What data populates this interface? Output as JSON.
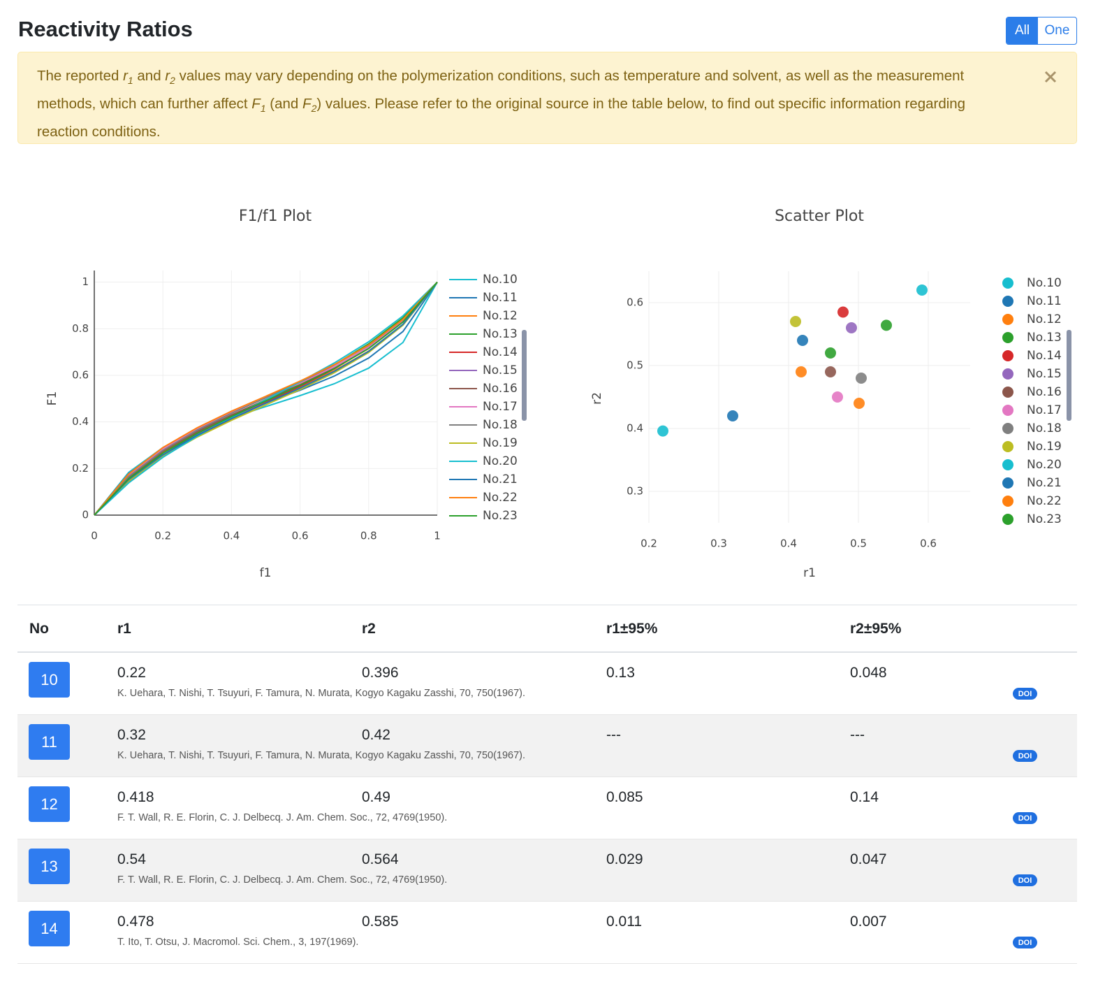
{
  "header": {
    "title": "Reactivity Ratios",
    "toggle": [
      "All",
      "One"
    ]
  },
  "alert": {
    "parts": [
      "The reported ",
      "r",
      "1",
      " and ",
      "r",
      "2",
      " values may vary depending on the polymerization conditions, such as temperature and solvent, as well as the measurement methods, which can further affect ",
      "F",
      "1",
      " (and ",
      "F",
      "2",
      ") values. Please refer to the original source in the table below, to find out specific information regarding reaction conditions."
    ]
  },
  "chart_data": [
    {
      "type": "line",
      "title": "F1/f1 Plot",
      "xlabel": "f1",
      "ylabel": "F1",
      "x": [
        0,
        0.1,
        0.2,
        0.3,
        0.4,
        0.5,
        0.6,
        0.7,
        0.8,
        0.9,
        1
      ],
      "xlim": [
        0,
        1
      ],
      "ylim": [
        0,
        1.05
      ],
      "xticks": [
        0,
        0.2,
        0.4,
        0.6,
        0.8,
        1
      ],
      "yticks": [
        0,
        0.2,
        0.4,
        0.6,
        0.8,
        1
      ],
      "grid": true,
      "legend": "right",
      "series": [
        {
          "name": "No.10",
          "color": "#17becf",
          "values": [
            0,
            0.183,
            0.29,
            0.363,
            0.418,
            0.466,
            0.513,
            0.564,
            0.631,
            0.741,
            1
          ]
        },
        {
          "name": "No.11",
          "color": "#1f77b4",
          "values": [
            0,
            0.178,
            0.287,
            0.365,
            0.427,
            0.482,
            0.536,
            0.597,
            0.674,
            0.788,
            1
          ]
        },
        {
          "name": "No.12",
          "color": "#ff7f0e",
          "values": [
            0,
            0.162,
            0.272,
            0.355,
            0.424,
            0.488,
            0.551,
            0.62,
            0.704,
            0.819,
            1
          ]
        },
        {
          "name": "No.13",
          "color": "#2ca02c",
          "values": [
            0,
            0.149,
            0.258,
            0.347,
            0.424,
            0.496,
            0.568,
            0.645,
            0.735,
            0.847,
            1
          ]
        },
        {
          "name": "No.14",
          "color": "#d62728",
          "values": [
            0,
            0.144,
            0.251,
            0.338,
            0.413,
            0.483,
            0.553,
            0.628,
            0.718,
            0.833,
            1
          ]
        },
        {
          "name": "No.15",
          "color": "#9467bd",
          "values": [
            0,
            0.149,
            0.257,
            0.344,
            0.419,
            0.489,
            0.558,
            0.634,
            0.722,
            0.836,
            1
          ]
        },
        {
          "name": "No.16",
          "color": "#8c564b",
          "values": [
            0,
            0.163,
            0.274,
            0.358,
            0.43,
            0.495,
            0.56,
            0.632,
            0.717,
            0.83,
            1
          ]
        },
        {
          "name": "No.17",
          "color": "#e377c2",
          "values": [
            0,
            0.172,
            0.285,
            0.37,
            0.44,
            0.503,
            0.567,
            0.637,
            0.721,
            0.833,
            1
          ]
        },
        {
          "name": "No.18",
          "color": "#7f7f7f",
          "values": [
            0,
            0.166,
            0.278,
            0.365,
            0.437,
            0.504,
            0.571,
            0.644,
            0.729,
            0.84,
            1
          ]
        },
        {
          "name": "No.19",
          "color": "#bcbd22",
          "values": [
            0,
            0.146,
            0.252,
            0.335,
            0.407,
            0.473,
            0.539,
            0.611,
            0.698,
            0.815,
            1
          ]
        },
        {
          "name": "No.20",
          "color": "#17becf",
          "values": [
            0,
            0.138,
            0.248,
            0.339,
            0.419,
            0.495,
            0.572,
            0.653,
            0.744,
            0.855,
            1
          ]
        },
        {
          "name": "No.21",
          "color": "#1f77b4",
          "values": [
            0,
            0.152,
            0.259,
            0.343,
            0.414,
            0.48,
            0.545,
            0.617,
            0.703,
            0.819,
            1
          ]
        },
        {
          "name": "No.22",
          "color": "#ff7f0e",
          "values": [
            0,
            0.176,
            0.29,
            0.375,
            0.446,
            0.51,
            0.575,
            0.646,
            0.73,
            0.84,
            1
          ]
        },
        {
          "name": "No.23",
          "color": "#2ca02c",
          "values": [
            0,
            0.156,
            0.266,
            0.351,
            0.423,
            0.49,
            0.557,
            0.629,
            0.715,
            0.829,
            1
          ]
        }
      ]
    },
    {
      "type": "scatter",
      "title": "Scatter Plot",
      "xlabel": "r1",
      "ylabel": "r2",
      "xlim": [
        0.2,
        0.66
      ],
      "ylim": [
        0.25,
        0.65
      ],
      "xticks": [
        0.2,
        0.3,
        0.4,
        0.5,
        0.6
      ],
      "yticks": [
        0.3,
        0.4,
        0.5,
        0.6
      ],
      "grid": true,
      "legend": "right",
      "series": [
        {
          "name": "No.10",
          "color": "#17becf",
          "x": [
            0.22
          ],
          "y": [
            0.396
          ]
        },
        {
          "name": "No.11",
          "color": "#1f77b4",
          "x": [
            0.32
          ],
          "y": [
            0.42
          ]
        },
        {
          "name": "No.12",
          "color": "#ff7f0e",
          "x": [
            0.418
          ],
          "y": [
            0.49
          ]
        },
        {
          "name": "No.13",
          "color": "#2ca02c",
          "x": [
            0.54
          ],
          "y": [
            0.564
          ]
        },
        {
          "name": "No.14",
          "color": "#d62728",
          "x": [
            0.478
          ],
          "y": [
            0.585
          ]
        },
        {
          "name": "No.15",
          "color": "#9467bd",
          "x": [
            0.49
          ],
          "y": [
            0.56
          ]
        },
        {
          "name": "No.16",
          "color": "#8c564b",
          "x": [
            0.46
          ],
          "y": [
            0.49
          ]
        },
        {
          "name": "No.17",
          "color": "#e377c2",
          "x": [
            0.47
          ],
          "y": [
            0.45
          ]
        },
        {
          "name": "No.18",
          "color": "#7f7f7f",
          "x": [
            0.504
          ],
          "y": [
            0.48
          ]
        },
        {
          "name": "No.19",
          "color": "#bcbd22",
          "x": [
            0.41
          ],
          "y": [
            0.57
          ]
        },
        {
          "name": "No.20",
          "color": "#17becf",
          "x": [
            0.591
          ],
          "y": [
            0.62
          ]
        },
        {
          "name": "No.21",
          "color": "#1f77b4",
          "x": [
            0.42
          ],
          "y": [
            0.54
          ]
        },
        {
          "name": "No.22",
          "color": "#ff7f0e",
          "x": [
            0.501
          ],
          "y": [
            0.44
          ]
        },
        {
          "name": "No.23",
          "color": "#2ca02c",
          "x": [
            0.46
          ],
          "y": [
            0.52
          ]
        }
      ]
    }
  ],
  "table": {
    "columns": [
      "No",
      "r1",
      "r2",
      "r1±95%",
      "r2±95%"
    ],
    "doi_label": "DOI",
    "rows": [
      {
        "no": 10,
        "r1": 0.22,
        "r2": 0.396,
        "r1_ci": 0.13,
        "r2_ci": 0.048,
        "ref": "K. Uehara, T. Nishi, T. Tsuyuri, F. Tamura, N. Murata, Kogyo Kagaku Zasshi, 70, 750(1967)."
      },
      {
        "no": 11,
        "r1": 0.32,
        "r2": 0.42,
        "r1_ci": "---",
        "r2_ci": "---",
        "ref": "K. Uehara, T. Nishi, T. Tsuyuri, F. Tamura, N. Murata, Kogyo Kagaku Zasshi, 70, 750(1967)."
      },
      {
        "no": 12,
        "r1": 0.418,
        "r2": 0.49,
        "r1_ci": 0.085,
        "r2_ci": 0.14,
        "ref": "F. T. Wall, R. E. Florin, C. J. Delbecq. J. Am. Chem. Soc., 72, 4769(1950)."
      },
      {
        "no": 13,
        "r1": 0.54,
        "r2": 0.564,
        "r1_ci": 0.029,
        "r2_ci": 0.047,
        "ref": "F. T. Wall, R. E. Florin, C. J. Delbecq. J. Am. Chem. Soc., 72, 4769(1950)."
      },
      {
        "no": 14,
        "r1": 0.478,
        "r2": 0.585,
        "r1_ci": 0.011,
        "r2_ci": 0.007,
        "ref": "T. Ito, T. Otsu, J. Macromol. Sci. Chem., 3, 197(1969)."
      }
    ]
  }
}
